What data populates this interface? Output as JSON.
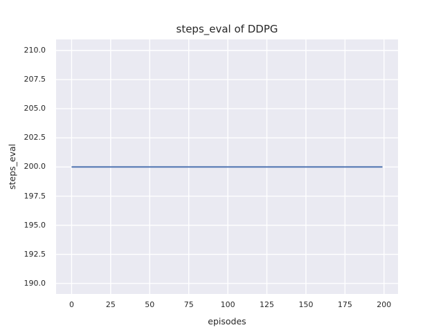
{
  "figure": {
    "background": "#ffffff",
    "text_color": "#262626"
  },
  "chart_data": {
    "type": "line",
    "title": "steps_eval of DDPG",
    "xlabel": "episodes",
    "ylabel": "steps_eval",
    "style": "seaborn-darkgrid",
    "plot_background": "#eaeaf2",
    "gridline_color": "#ffffff",
    "grid": true,
    "legend": false,
    "xlim": [
      -9.95,
      208.95
    ],
    "ylim": [
      189.1,
      210.95
    ],
    "x_ticks": {
      "values": [
        0,
        25,
        50,
        75,
        100,
        125,
        150,
        175,
        200
      ],
      "labels": [
        "0",
        "25",
        "50",
        "75",
        "100",
        "125",
        "150",
        "175",
        "200"
      ]
    },
    "y_ticks": {
      "values": [
        190.0,
        192.5,
        195.0,
        197.5,
        200.0,
        202.5,
        205.0,
        207.5,
        210.0
      ],
      "labels": [
        "190.0",
        "192.5",
        "195.0",
        "197.5",
        "200.0",
        "202.5",
        "205.0",
        "207.5",
        "210.0"
      ]
    },
    "series": [
      {
        "name": "DDPG",
        "color": "#4c72b0",
        "linewidth": 2,
        "x": [
          0,
          199
        ],
        "y": [
          200,
          200
        ]
      }
    ]
  }
}
